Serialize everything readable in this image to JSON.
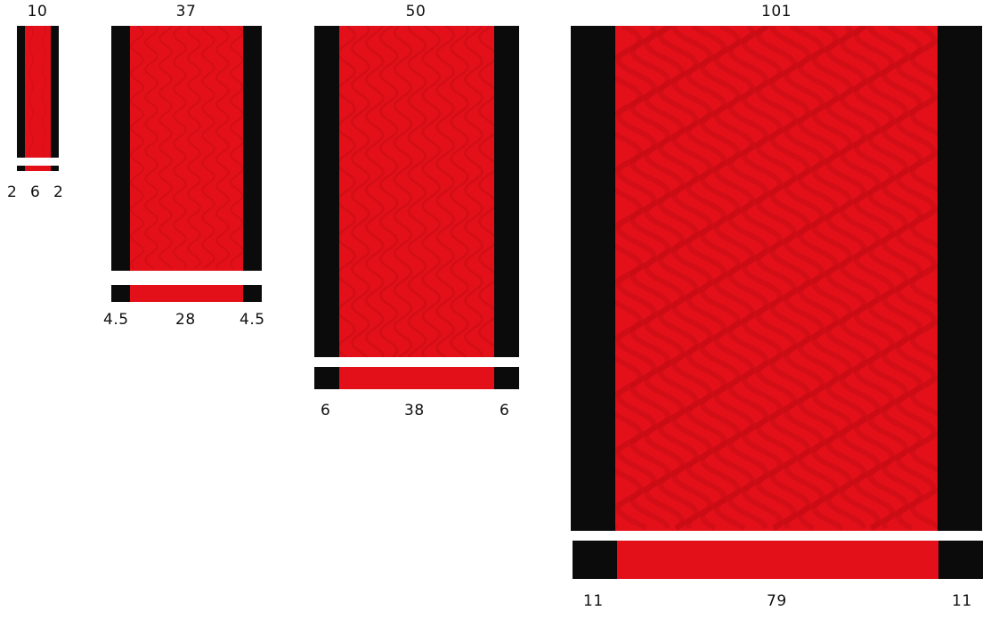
{
  "colors": {
    "red": "#e3101a",
    "red_dark": "#c80c14",
    "black": "#0b0b0b"
  },
  "ribbons": [
    {
      "width_label": "10",
      "segments": [
        {
          "value": 2,
          "label": "2",
          "color": "black"
        },
        {
          "value": 6,
          "label": "6",
          "color": "red"
        },
        {
          "value": 2,
          "label": "2",
          "color": "black"
        }
      ]
    },
    {
      "width_label": "37",
      "segments": [
        {
          "value": 4.5,
          "label": "4.5",
          "color": "black"
        },
        {
          "value": 28,
          "label": "28",
          "color": "red"
        },
        {
          "value": 4.5,
          "label": "4.5",
          "color": "black"
        }
      ]
    },
    {
      "width_label": "50",
      "segments": [
        {
          "value": 6,
          "label": "6",
          "color": "black"
        },
        {
          "value": 38,
          "label": "38",
          "color": "red"
        },
        {
          "value": 6,
          "label": "6",
          "color": "black"
        }
      ]
    },
    {
      "width_label": "101",
      "segments": [
        {
          "value": 11,
          "label": "11",
          "color": "black"
        },
        {
          "value": 79,
          "label": "79",
          "color": "red"
        },
        {
          "value": 11,
          "label": "11",
          "color": "black"
        }
      ]
    }
  ]
}
